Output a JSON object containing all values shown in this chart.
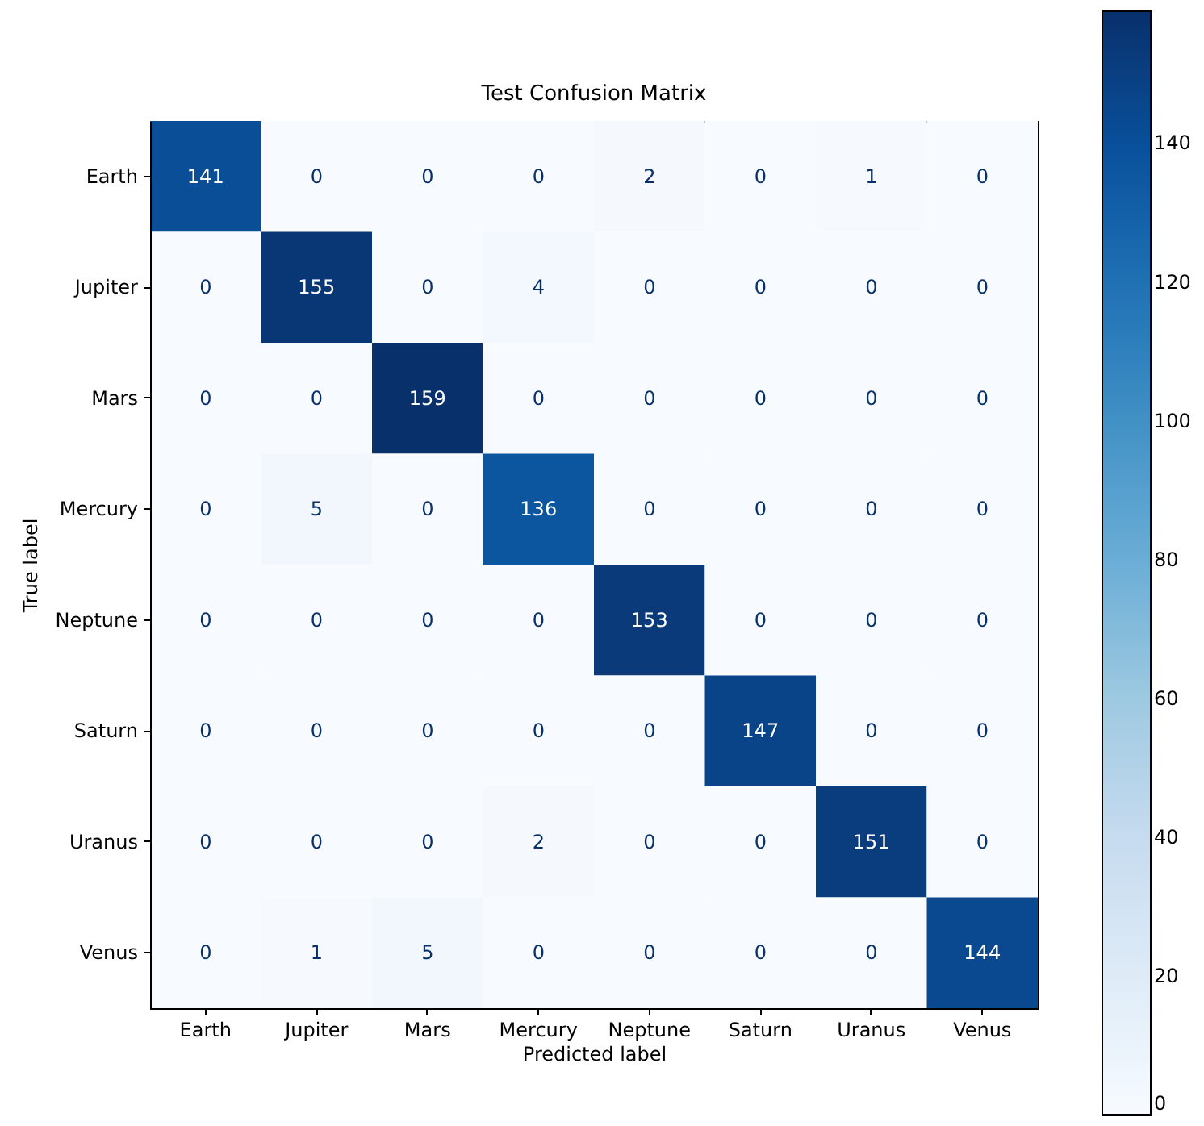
{
  "chart_data": {
    "type": "heatmap",
    "title": "Test Confusion Matrix",
    "xlabel": "Predicted label",
    "ylabel": "True label",
    "categories": [
      "Earth",
      "Jupiter",
      "Mars",
      "Mercury",
      "Neptune",
      "Saturn",
      "Uranus",
      "Venus"
    ],
    "y_categories": [
      "Earth",
      "Jupiter",
      "Mars",
      "Mercury",
      "Neptune",
      "Saturn",
      "Uranus",
      "Venus"
    ],
    "cells": [
      [
        141,
        0,
        0,
        0,
        2,
        0,
        1,
        0
      ],
      [
        0,
        155,
        0,
        4,
        0,
        0,
        0,
        0
      ],
      [
        0,
        0,
        159,
        0,
        0,
        0,
        0,
        0
      ],
      [
        0,
        5,
        0,
        136,
        0,
        0,
        0,
        0
      ],
      [
        0,
        0,
        0,
        0,
        153,
        0,
        0,
        0
      ],
      [
        0,
        0,
        0,
        0,
        0,
        147,
        0,
        0
      ],
      [
        0,
        0,
        0,
        2,
        0,
        0,
        151,
        0
      ],
      [
        0,
        1,
        5,
        0,
        0,
        0,
        0,
        144
      ]
    ],
    "clim": [
      0,
      159
    ],
    "cticks": [
      0,
      20,
      40,
      60,
      80,
      100,
      120,
      140
    ],
    "data_labels": true
  }
}
